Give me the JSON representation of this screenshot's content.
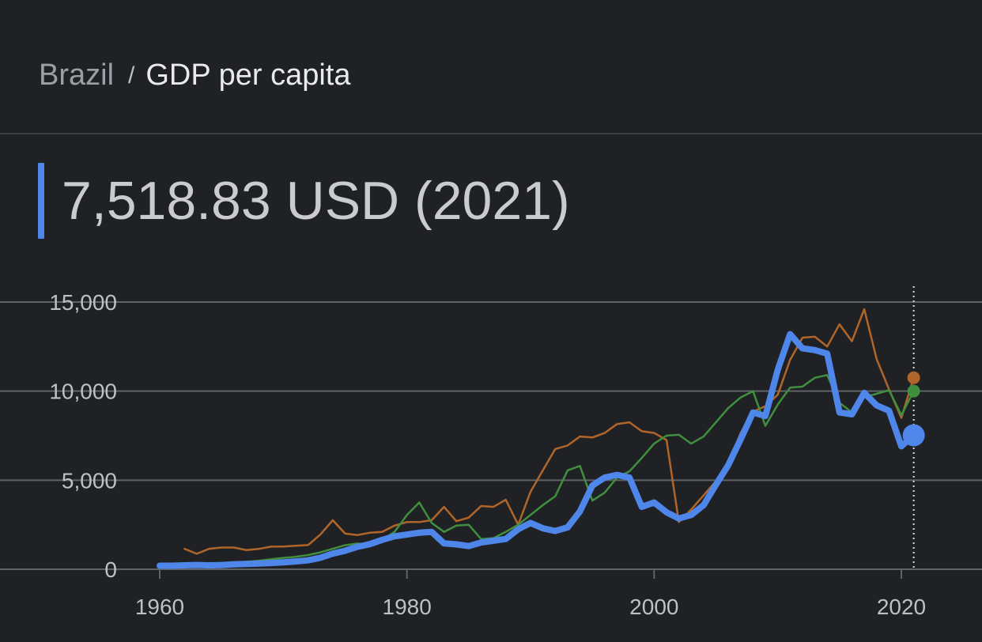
{
  "breadcrumb": {
    "country": "Brazil",
    "separator": "/",
    "metric": "GDP per capita"
  },
  "headline": {
    "value_text": "7,518.83 USD (2021)"
  },
  "colors": {
    "background": "#202124",
    "primary": "#4f86ea",
    "orange": "#b0662a",
    "green": "#3f8f3f",
    "grid": "#5f6368",
    "text": "#bdc1c6"
  },
  "chart_data": {
    "type": "line",
    "title": "",
    "xlabel": "",
    "ylabel": "",
    "xlim": [
      1960,
      2021
    ],
    "ylim": [
      0,
      15000
    ],
    "y_ticks": [
      0,
      5000,
      10000,
      15000
    ],
    "y_tick_labels": [
      "0",
      "5,000",
      "10,000",
      "15,000"
    ],
    "x_ticks": [
      1960,
      1980,
      2000,
      2020
    ],
    "x_tick_labels": [
      "1960",
      "1980",
      "2000",
      "2020"
    ],
    "grid": true,
    "highlight_x": 2021,
    "series": [
      {
        "color": "#b0662a",
        "width": 2.5,
        "x": [
          1962,
          1963,
          1964,
          1965,
          1966,
          1967,
          1968,
          1969,
          1970,
          1971,
          1972,
          1973,
          1974,
          1975,
          1976,
          1977,
          1978,
          1979,
          1980,
          1981,
          1982,
          1983,
          1984,
          1985,
          1986,
          1987,
          1988,
          1989,
          1990,
          1991,
          1992,
          1993,
          1994,
          1995,
          1996,
          1997,
          1998,
          1999,
          2000,
          2001,
          2002,
          2003,
          2004,
          2005,
          2006,
          2007,
          2008,
          2009,
          2010,
          2011,
          2012,
          2013,
          2014,
          2015,
          2016,
          2017,
          2018,
          2019,
          2020,
          2021
        ],
        "values": [
          1150,
          870,
          1150,
          1220,
          1220,
          1080,
          1140,
          1270,
          1280,
          1320,
          1360,
          1950,
          2750,
          2000,
          1920,
          2050,
          2100,
          2450,
          2650,
          2650,
          2750,
          3500,
          2700,
          2900,
          3550,
          3500,
          3900,
          2500,
          4350,
          5550,
          6750,
          6950,
          7450,
          7400,
          7650,
          8150,
          8250,
          7750,
          7650,
          7250,
          2650,
          3350,
          4150,
          4950,
          5950,
          7650,
          8850,
          9150,
          9800,
          11750,
          13000,
          13050,
          12500,
          13750,
          12800,
          14600,
          11800,
          10100,
          8500,
          10750
        ]
      },
      {
        "color": "#3f8f3f",
        "width": 2.5,
        "x": [
          1960,
          1961,
          1962,
          1963,
          1964,
          1965,
          1966,
          1967,
          1968,
          1969,
          1970,
          1971,
          1972,
          1973,
          1974,
          1975,
          1976,
          1977,
          1978,
          1979,
          1980,
          1981,
          1982,
          1983,
          1984,
          1985,
          1986,
          1987,
          1988,
          1989,
          1990,
          1991,
          1992,
          1993,
          1994,
          1995,
          1996,
          1997,
          1998,
          1999,
          2000,
          2001,
          2002,
          2003,
          2004,
          2005,
          2006,
          2007,
          2008,
          2009,
          2010,
          2011,
          2012,
          2013,
          2014,
          2015,
          2016,
          2017,
          2018,
          2019,
          2020,
          2021
        ],
        "values": [
          200,
          220,
          250,
          280,
          320,
          360,
          390,
          420,
          480,
          560,
          640,
          700,
          800,
          950,
          1150,
          1350,
          1450,
          1300,
          1650,
          2100,
          3050,
          3750,
          2600,
          2100,
          2450,
          2500,
          1700,
          1750,
          2100,
          2500,
          3050,
          3600,
          4100,
          5550,
          5800,
          3850,
          4300,
          5150,
          5500,
          6250,
          7050,
          7500,
          7550,
          7050,
          7450,
          8250,
          9050,
          9650,
          10000,
          8050,
          9250,
          10200,
          10250,
          10750,
          10900,
          9350,
          8800,
          9650,
          9850,
          10050,
          8650,
          10000
        ]
      },
      {
        "color": "#4f86ea",
        "width": 8,
        "x": [
          1960,
          1961,
          1962,
          1963,
          1964,
          1965,
          1966,
          1967,
          1968,
          1969,
          1970,
          1971,
          1972,
          1973,
          1974,
          1975,
          1976,
          1977,
          1978,
          1979,
          1980,
          1981,
          1982,
          1983,
          1984,
          1985,
          1986,
          1987,
          1988,
          1989,
          1990,
          1991,
          1992,
          1993,
          1994,
          1995,
          1996,
          1997,
          1998,
          1999,
          2000,
          2001,
          2002,
          2003,
          2004,
          2005,
          2006,
          2007,
          2008,
          2009,
          2010,
          2011,
          2012,
          2013,
          2014,
          2015,
          2016,
          2017,
          2018,
          2019,
          2020,
          2021
        ],
        "values": [
          200,
          200,
          220,
          240,
          220,
          230,
          280,
          300,
          320,
          350,
          390,
          440,
          500,
          650,
          880,
          1040,
          1260,
          1410,
          1650,
          1850,
          1950,
          2050,
          2100,
          1450,
          1400,
          1300,
          1500,
          1600,
          1700,
          2250,
          2600,
          2300,
          2150,
          2350,
          3250,
          4700,
          5150,
          5300,
          5150,
          3500,
          3750,
          3200,
          2850,
          3050,
          3600,
          4750,
          5850,
          7300,
          8800,
          8600,
          11200,
          13200,
          12400,
          12300,
          12100,
          8800,
          8700,
          9900,
          9200,
          8900,
          6900,
          7518.83
        ]
      }
    ]
  }
}
